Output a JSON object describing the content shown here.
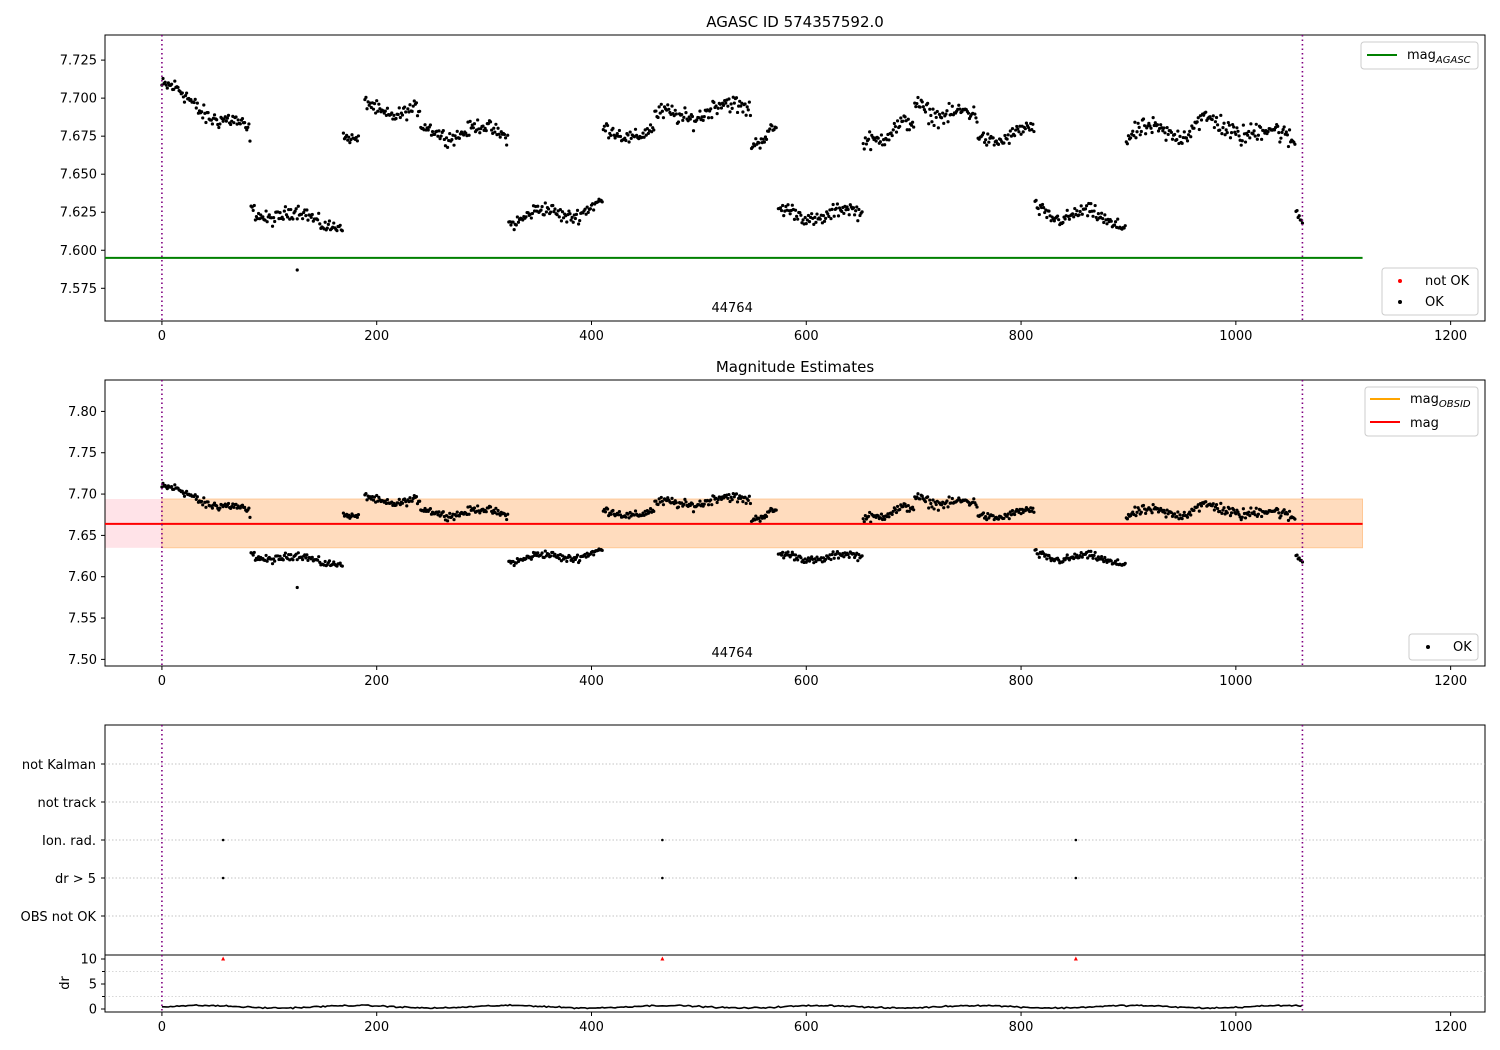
{
  "colors": {
    "ok": "#000000",
    "not_ok": "#ff0000",
    "agasc_line": "#008000",
    "obsid_line": "#ffa500",
    "mag_line": "#ff0000",
    "band_fill": "#ffc0cb",
    "band_inner": "#ffdab9",
    "obs_boundary": "#800080",
    "grid": "#b0b0b0"
  },
  "chart_data": [
    {
      "type": "scatter",
      "title": "AGASC ID 574357592.0",
      "xlim": [
        -53,
        1232
      ],
      "ylim": [
        7.5535,
        7.7415
      ],
      "xticks": [
        0,
        200,
        400,
        600,
        800,
        1000,
        1200
      ],
      "yticks": [
        7.575,
        7.6,
        7.625,
        7.65,
        7.675,
        7.7,
        7.725
      ],
      "ytick_labels": [
        "7.575",
        "7.600",
        "7.625",
        "7.650",
        "7.675",
        "7.700",
        "7.725"
      ],
      "obs_boundaries": [
        0,
        1062
      ],
      "obsid_label": "44764",
      "obsid_x": 531,
      "mag_agasc": 7.595,
      "mag_agasc_xrange": [
        -53,
        1118
      ],
      "legend_upper": [
        {
          "label": "mag",
          "sub": "AGASC",
          "color": "#008000"
        }
      ],
      "legend_lower": [
        {
          "label": "not OK",
          "color": "#ff0000",
          "marker": "dot"
        },
        {
          "label": "OK",
          "color": "#000000",
          "marker": "dot"
        }
      ],
      "outlier": {
        "x": 126,
        "y": 7.587
      },
      "segments": [
        {
          "x": [
            0,
            82
          ],
          "y0": 7.708,
          "y1": 7.676,
          "noise": 0.005
        },
        {
          "x": [
            83,
            168
          ],
          "y0": 7.626,
          "y1": 7.618,
          "noise": 0.004
        },
        {
          "x": [
            169,
            183
          ],
          "y0": 7.674,
          "y1": 7.668,
          "noise": 0.003
        },
        {
          "x": [
            189,
            240
          ],
          "y0": 7.695,
          "y1": 7.689,
          "noise": 0.004
        },
        {
          "x": [
            241,
            322
          ],
          "y0": 7.678,
          "y1": 7.678,
          "noise": 0.004
        },
        {
          "x": [
            323,
            410
          ],
          "y0": 7.621,
          "y1": 7.628,
          "noise": 0.004
        },
        {
          "x": [
            411,
            458
          ],
          "y0": 7.676,
          "y1": 7.679,
          "noise": 0.004
        },
        {
          "x": [
            459,
            548
          ],
          "y0": 7.686,
          "y1": 7.696,
          "noise": 0.005
        },
        {
          "x": [
            549,
            572
          ],
          "y0": 7.673,
          "y1": 7.679,
          "noise": 0.004
        },
        {
          "x": [
            574,
            652
          ],
          "y0": 7.623,
          "y1": 7.624,
          "noise": 0.004
        },
        {
          "x": [
            653,
            700
          ],
          "y0": 7.674,
          "y1": 7.681,
          "noise": 0.005
        },
        {
          "x": [
            701,
            759
          ],
          "y0": 7.695,
          "y1": 7.686,
          "noise": 0.005
        },
        {
          "x": [
            760,
            812
          ],
          "y0": 7.674,
          "y1": 7.677,
          "noise": 0.004
        },
        {
          "x": [
            813,
            897
          ],
          "y0": 7.626,
          "y1": 7.619,
          "noise": 0.004
        },
        {
          "x": [
            898,
            958
          ],
          "y0": 7.676,
          "y1": 7.679,
          "noise": 0.005
        },
        {
          "x": [
            959,
            1055
          ],
          "y0": 7.684,
          "y1": 7.674,
          "noise": 0.006
        },
        {
          "x": [
            1056,
            1062
          ],
          "y0": 7.63,
          "y1": 7.622,
          "noise": 0.002
        }
      ]
    },
    {
      "type": "scatter",
      "title": "Magnitude Estimates",
      "xlim": [
        -53,
        1232
      ],
      "ylim": [
        7.492,
        7.838
      ],
      "xticks": [
        0,
        200,
        400,
        600,
        800,
        1000,
        1200
      ],
      "yticks": [
        7.5,
        7.55,
        7.6,
        7.65,
        7.7,
        7.75,
        7.8
      ],
      "ytick_labels": [
        "7.50",
        "7.55",
        "7.60",
        "7.65",
        "7.70",
        "7.75",
        "7.80"
      ],
      "obs_boundaries": [
        0,
        1062
      ],
      "obsid_label": "44764",
      "obsid_x": 531,
      "mag": 7.664,
      "mag_obsid": 7.664,
      "band": [
        7.635,
        7.694
      ],
      "band_xrange": [
        -53,
        1118
      ],
      "legend_upper": [
        {
          "label": "mag",
          "sub": "OBSID",
          "color": "#ffa500"
        },
        {
          "label": "mag",
          "sub": "",
          "color": "#ff0000"
        }
      ],
      "legend_lower": [
        {
          "label": "OK",
          "color": "#000000",
          "marker": "dot"
        }
      ]
    },
    {
      "type": "scatter",
      "title": "",
      "xlim": [
        -53,
        1232
      ],
      "categories": [
        "not Kalman",
        "not track",
        "Ion. rad.",
        "dr > 5",
        "OBS not OK"
      ],
      "flag_points": {
        "Ion. rad.": [
          57,
          466,
          851
        ],
        "dr > 5": [
          57,
          466,
          851
        ]
      },
      "obs_boundaries": [
        0,
        1062
      ]
    },
    {
      "type": "line",
      "ylabel": "dr",
      "xlim": [
        -53,
        1232
      ],
      "ylim": [
        -0.6,
        10.8
      ],
      "yticks": [
        0,
        5,
        10
      ],
      "xticks": [
        0,
        200,
        400,
        600,
        800,
        1000,
        1200
      ],
      "red_markers": {
        "x": [
          57,
          466,
          851
        ],
        "y": 10
      },
      "dr_level": 0.45,
      "obs_boundaries": [
        0,
        1062
      ]
    }
  ]
}
